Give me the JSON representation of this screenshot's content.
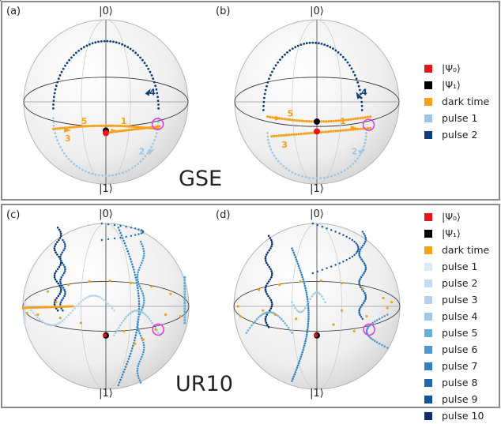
{
  "panels": {
    "a": {
      "label": "(a)",
      "ket_top": "|0⟩",
      "ket_bottom": "|1⟩"
    },
    "b": {
      "label": "(b)",
      "ket_top": "|0⟩",
      "ket_bottom": "|1⟩"
    },
    "c": {
      "label": "(c)",
      "ket_top": "|0⟩",
      "ket_bottom": "|1⟩"
    },
    "d": {
      "label": "(d)",
      "ket_top": "|0⟩",
      "ket_bottom": "|1⟩"
    }
  },
  "sections": {
    "top_title": "GSE",
    "bottom_title": "UR10"
  },
  "trajectory_markers": {
    "a": [
      "4",
      "5",
      "1",
      "3",
      "2"
    ],
    "b": [
      "4",
      "5",
      "1",
      "3",
      "2"
    ]
  },
  "colors": {
    "psi0": "#e8141b",
    "psi1": "#000000",
    "dark_time": "#f5a11a",
    "highlight": "#e040e0",
    "pulse_light": "#9cc6e4",
    "pulse_dark": "#0f3e7a"
  },
  "legend_top": [
    {
      "label": "|Ψ₀⟩",
      "color": "#e8141b"
    },
    {
      "label": "|Ψ₁⟩",
      "color": "#000000"
    },
    {
      "label": "dark time",
      "color": "#f5a11a"
    },
    {
      "label": "pulse 1",
      "color": "#9cc6e4"
    },
    {
      "label": "pulse 2",
      "color": "#0f3e7a"
    }
  ],
  "legend_bottom": [
    {
      "label": "|Ψ₀⟩",
      "color": "#e8141b"
    },
    {
      "label": "|Ψ₁⟩",
      "color": "#000000"
    },
    {
      "label": "dark time",
      "color": "#f5a11a"
    },
    {
      "label": "pulse 1",
      "color": "#dbe9f6"
    },
    {
      "label": "pulse 2",
      "color": "#c6dbef"
    },
    {
      "label": "pulse 3",
      "color": "#b3d1ea"
    },
    {
      "label": "pulse 4",
      "color": "#9ecae1"
    },
    {
      "label": "pulse 5",
      "color": "#6baed6"
    },
    {
      "label": "pulse 6",
      "color": "#4f98cc"
    },
    {
      "label": "pulse 7",
      "color": "#3182bd"
    },
    {
      "label": "pulse 8",
      "color": "#1f6aad"
    },
    {
      "label": "pulse 9",
      "color": "#15509a"
    },
    {
      "label": "pulse 10",
      "color": "#08306b"
    }
  ]
}
